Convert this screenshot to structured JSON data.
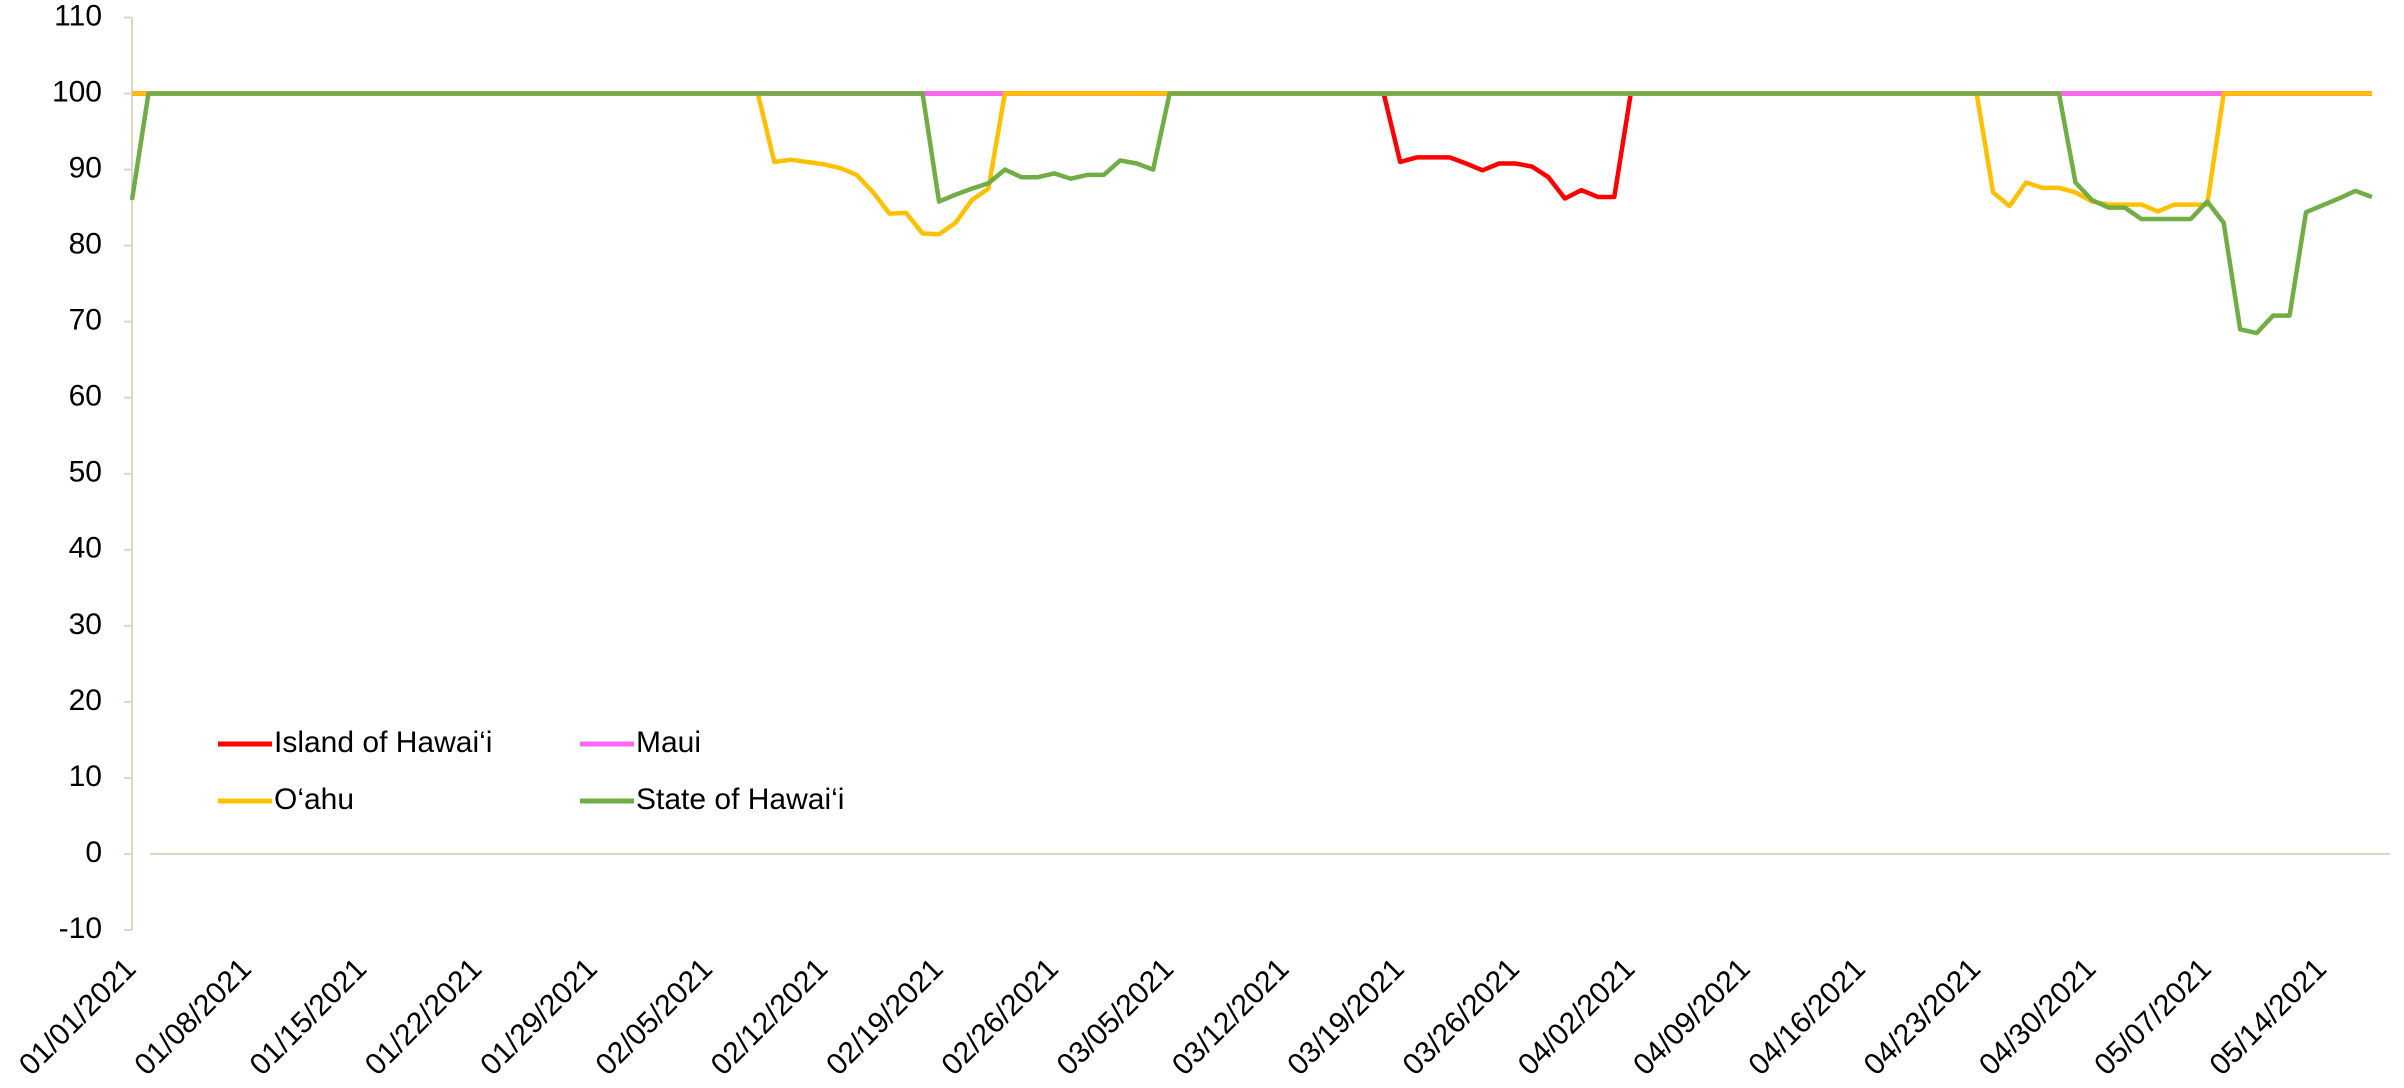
{
  "chart_data": {
    "type": "line",
    "categories": [
      "01/01/2021",
      null,
      null,
      null,
      null,
      null,
      null,
      "01/08/2021",
      null,
      null,
      null,
      null,
      null,
      null,
      "01/15/2021",
      null,
      null,
      null,
      null,
      null,
      null,
      "01/22/2021",
      null,
      null,
      null,
      null,
      null,
      null,
      "01/29/2021",
      null,
      null,
      null,
      null,
      null,
      null,
      "02/05/2021",
      null,
      null,
      null,
      null,
      null,
      null,
      "02/12/2021",
      null,
      null,
      null,
      null,
      null,
      null,
      "02/19/2021",
      null,
      null,
      null,
      null,
      null,
      null,
      "02/26/2021",
      null,
      null,
      null,
      null,
      null,
      null,
      "03/05/2021",
      null,
      null,
      null,
      null,
      null,
      null,
      "03/12/2021",
      null,
      null,
      null,
      null,
      null,
      null,
      "03/19/2021",
      null,
      null,
      null,
      null,
      null,
      null,
      "03/26/2021",
      null,
      null,
      null,
      null,
      null,
      null,
      "04/02/2021",
      null,
      null,
      null,
      null,
      null,
      null,
      "04/09/2021",
      null,
      null,
      null,
      null,
      null,
      null,
      "04/16/2021",
      null,
      null,
      null,
      null,
      null,
      null,
      "04/23/2021",
      null,
      null,
      null,
      null,
      null,
      null,
      "04/30/2021",
      null,
      null,
      null,
      null,
      null,
      null,
      "05/07/2021",
      null,
      null,
      null,
      null,
      null,
      null,
      "05/14/2021",
      null,
      null,
      null
    ],
    "series": [
      {
        "name": "Island of Hawai‘i",
        "color": "#ff0000",
        "values": [
          100,
          100,
          100,
          100,
          100,
          100,
          100,
          100,
          100,
          100,
          100,
          100,
          100,
          100,
          100,
          100,
          100,
          100,
          100,
          100,
          100,
          100,
          100,
          100,
          100,
          100,
          100,
          100,
          100,
          100,
          100,
          100,
          100,
          100,
          100,
          100,
          100,
          100,
          100,
          100,
          100,
          100,
          100,
          100,
          100,
          100,
          100,
          100,
          100,
          100,
          100,
          100,
          100,
          100,
          100,
          100,
          100,
          100,
          100,
          100,
          100,
          100,
          100,
          100,
          100,
          100,
          100,
          100,
          100,
          100,
          100,
          100,
          100,
          100,
          100,
          100,
          100,
          91,
          91.6,
          91.6,
          91.6,
          90.8,
          89.9,
          90.8,
          90.8,
          90.4,
          89,
          86.2,
          87.3,
          86.4,
          86.4,
          100,
          100,
          100,
          100,
          100,
          100,
          100,
          100,
          100,
          100,
          100,
          100,
          100,
          100,
          100,
          100,
          100,
          100,
          100,
          100,
          100,
          100,
          100,
          100,
          100,
          100,
          100,
          100,
          100,
          100,
          100,
          100,
          100,
          100,
          100,
          100,
          100,
          100,
          100,
          100,
          100,
          100,
          100,
          100,
          100,
          100
        ]
      },
      {
        "name": "Maui",
        "color": "#ff66ff",
        "values": [
          100,
          100,
          100,
          100,
          100,
          100,
          100,
          100,
          100,
          100,
          100,
          100,
          100,
          100,
          100,
          100,
          100,
          100,
          100,
          100,
          100,
          100,
          100,
          100,
          100,
          100,
          100,
          100,
          100,
          100,
          100,
          100,
          100,
          100,
          100,
          100,
          100,
          100,
          100,
          100,
          100,
          100,
          100,
          100,
          100,
          100,
          100,
          100,
          100,
          100,
          100,
          100,
          100,
          100,
          100,
          100,
          100,
          100,
          100,
          100,
          100,
          100,
          100,
          100,
          100,
          100,
          100,
          100,
          100,
          100,
          100,
          100,
          100,
          100,
          100,
          100,
          100,
          100,
          100,
          100,
          100,
          100,
          100,
          100,
          100,
          100,
          100,
          100,
          100,
          100,
          100,
          100,
          100,
          100,
          100,
          100,
          100,
          100,
          100,
          100,
          100,
          100,
          100,
          100,
          100,
          100,
          100,
          100,
          100,
          100,
          100,
          100,
          100,
          100,
          100,
          100,
          100,
          100,
          100,
          100,
          100,
          100,
          100,
          100,
          100,
          100,
          100,
          100,
          100,
          100,
          100,
          100,
          100,
          100,
          100,
          100,
          100
        ]
      },
      {
        "name": "O‘ahu",
        "color": "#ffc000",
        "values": [
          100,
          100,
          100,
          100,
          100,
          100,
          100,
          100,
          100,
          100,
          100,
          100,
          100,
          100,
          100,
          100,
          100,
          100,
          100,
          100,
          100,
          100,
          100,
          100,
          100,
          100,
          100,
          100,
          100,
          100,
          100,
          100,
          100,
          100,
          100,
          100,
          100,
          100,
          100,
          91,
          91.3,
          91,
          90.7,
          90.2,
          89.3,
          87,
          84.2,
          84.3,
          81.6,
          81.5,
          83,
          86,
          87.5,
          100,
          100,
          100,
          100,
          100,
          100,
          100,
          100,
          100,
          100,
          100,
          100,
          100,
          100,
          100,
          100,
          100,
          100,
          100,
          100,
          100,
          100,
          100,
          100,
          100,
          100,
          100,
          100,
          100,
          100,
          100,
          100,
          100,
          100,
          100,
          100,
          100,
          100,
          100,
          100,
          100,
          100,
          100,
          100,
          100,
          100,
          100,
          100,
          100,
          100,
          100,
          100,
          100,
          100,
          100,
          100,
          100,
          100,
          100,
          100,
          87,
          85.2,
          88.3,
          87.6,
          87.6,
          87,
          85.8,
          85.4,
          85.4,
          85.4,
          84.5,
          85.4,
          85.4,
          85.4,
          100,
          100,
          100,
          100,
          100,
          100,
          100,
          100,
          100,
          100
        ]
      },
      {
        "name": "State of Hawai‘i",
        "color": "#70ad47",
        "values": [
          86,
          100,
          100,
          100,
          100,
          100,
          100,
          100,
          100,
          100,
          100,
          100,
          100,
          100,
          100,
          100,
          100,
          100,
          100,
          100,
          100,
          100,
          100,
          100,
          100,
          100,
          100,
          100,
          100,
          100,
          100,
          100,
          100,
          100,
          100,
          100,
          100,
          100,
          100,
          100,
          100,
          100,
          100,
          100,
          100,
          100,
          100,
          100,
          100,
          85.8,
          86.7,
          87.5,
          88.2,
          90,
          89,
          89,
          89.5,
          88.8,
          89.3,
          89.3,
          91.2,
          90.8,
          90,
          100,
          100,
          100,
          100,
          100,
          100,
          100,
          100,
          100,
          100,
          100,
          100,
          100,
          100,
          100,
          100,
          100,
          100,
          100,
          100,
          100,
          100,
          100,
          100,
          100,
          100,
          100,
          100,
          100,
          100,
          100,
          100,
          100,
          100,
          100,
          100,
          100,
          100,
          100,
          100,
          100,
          100,
          100,
          100,
          100,
          100,
          100,
          100,
          100,
          100,
          100,
          100,
          100,
          100,
          100,
          88.3,
          86,
          85,
          85,
          83.5,
          83.5,
          83.5,
          83.5,
          85.8,
          83,
          69,
          68.5,
          70.8,
          70.8,
          84.4,
          85.3,
          86.2,
          87.2,
          86.4
        ]
      }
    ],
    "ylim": [
      -10,
      110
    ],
    "yticks": [
      -10,
      0,
      10,
      20,
      30,
      40,
      50,
      60,
      70,
      80,
      90,
      100,
      110
    ]
  }
}
